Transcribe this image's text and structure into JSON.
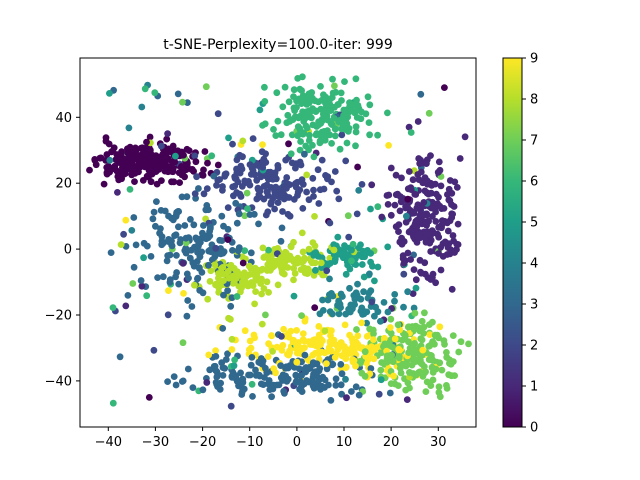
{
  "chart_data": {
    "type": "scatter",
    "title": "t-SNE-Perplexity=100.0-iter: 999",
    "xlabel": "",
    "ylabel": "",
    "xlim": [
      -46,
      38
    ],
    "ylim": [
      -54,
      58
    ],
    "xticks": [
      -40,
      -30,
      -20,
      -10,
      0,
      10,
      20,
      30
    ],
    "yticks": [
      -40,
      -20,
      0,
      20,
      40
    ],
    "grid": false,
    "colormap": "viridis",
    "colorbar": {
      "min": 0,
      "max": 9,
      "ticks": [
        0,
        1,
        2,
        3,
        4,
        5,
        6,
        7,
        8,
        9
      ]
    },
    "clusters": [
      {
        "label": 0,
        "center": [
          -31,
          26
        ],
        "spread": [
          5.5,
          3
        ],
        "count": 240
      },
      {
        "label": 1,
        "center": [
          27,
          9
        ],
        "spread": [
          3.5,
          9
        ],
        "count": 220
      },
      {
        "label": 2,
        "center": [
          -6,
          20
        ],
        "spread": [
          7,
          5
        ],
        "count": 160
      },
      {
        "label": 3,
        "center": [
          -22,
          0
        ],
        "spread": [
          6,
          7
        ],
        "count": 160
      },
      {
        "label": 3,
        "center": [
          -2,
          -38
        ],
        "spread": [
          9,
          3.5
        ],
        "count": 170
      },
      {
        "label": 4,
        "center": [
          14,
          -16
        ],
        "spread": [
          5,
          3
        ],
        "count": 60
      },
      {
        "label": 5,
        "center": [
          10,
          -2
        ],
        "spread": [
          3,
          3
        ],
        "count": 70
      },
      {
        "label": 6,
        "center": [
          5,
          41
        ],
        "spread": [
          5,
          5
        ],
        "count": 200
      },
      {
        "label": 7,
        "center": [
          24,
          -32
        ],
        "spread": [
          5,
          6
        ],
        "count": 200
      },
      {
        "label": 8,
        "center": [
          -2,
          -4
        ],
        "spread": [
          5,
          3
        ],
        "count": 100
      },
      {
        "label": 8,
        "center": [
          -13,
          -9
        ],
        "spread": [
          4,
          3
        ],
        "count": 80
      },
      {
        "label": 9,
        "center": [
          8,
          -30
        ],
        "spread": [
          9,
          3.5
        ],
        "count": 200
      }
    ],
    "noise": {
      "count": 170,
      "x_range": [
        -40,
        32
      ],
      "y_range": [
        -48,
        50
      ],
      "labels": [
        0,
        1,
        2,
        3,
        4,
        5,
        6,
        7,
        8,
        9
      ]
    }
  }
}
